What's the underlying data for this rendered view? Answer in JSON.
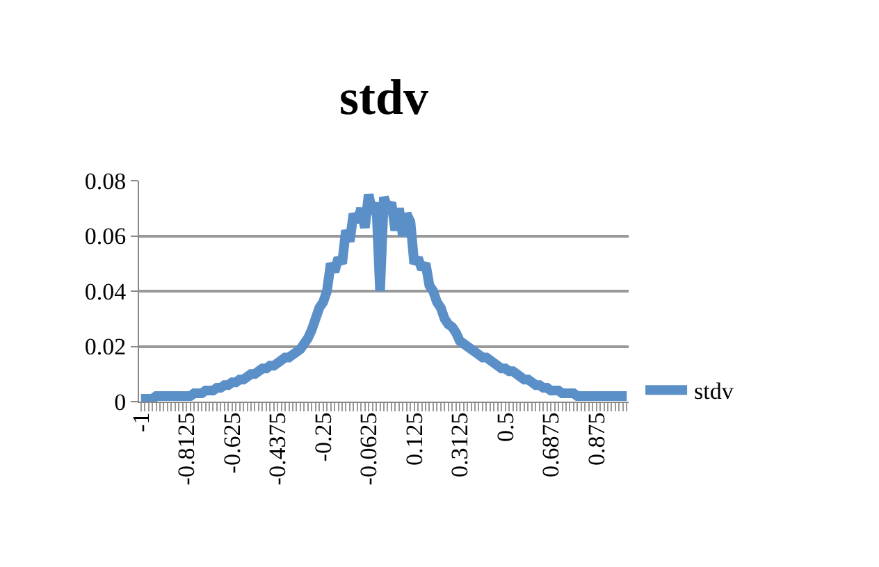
{
  "chart_data": {
    "type": "line",
    "title": "stdv",
    "categories": [
      "-1",
      null,
      null,
      null,
      null,
      null,
      null,
      null,
      null,
      null,
      null,
      null,
      "-0.8125",
      null,
      null,
      null,
      null,
      null,
      null,
      null,
      null,
      null,
      null,
      null,
      "-0.625",
      null,
      null,
      null,
      null,
      null,
      null,
      null,
      null,
      null,
      null,
      null,
      "-0.4375",
      null,
      null,
      null,
      null,
      null,
      null,
      null,
      null,
      null,
      null,
      null,
      "-0.25",
      null,
      null,
      null,
      null,
      null,
      null,
      null,
      null,
      null,
      null,
      null,
      "-0.0625",
      null,
      null,
      null,
      null,
      null,
      null,
      null,
      null,
      null,
      null,
      null,
      "0.125",
      null,
      null,
      null,
      null,
      null,
      null,
      null,
      null,
      null,
      null,
      null,
      "0.3125",
      null,
      null,
      null,
      null,
      null,
      null,
      null,
      null,
      null,
      null,
      null,
      "0.5",
      null,
      null,
      null,
      null,
      null,
      null,
      null,
      null,
      null,
      null,
      null,
      "0.6875",
      null,
      null,
      null,
      null,
      null,
      null,
      null,
      null,
      null,
      null,
      null,
      "0.875",
      null,
      null,
      null,
      null,
      null,
      null,
      null,
      null
    ],
    "series": [
      {
        "name": "stdv",
        "color": "#5b8fc7",
        "values": [
          0.001,
          0.001,
          0.001,
          0.001,
          0.002,
          0.002,
          0.002,
          0.002,
          0.002,
          0.002,
          0.002,
          0.002,
          0.002,
          0.002,
          0.003,
          0.003,
          0.003,
          0.004,
          0.004,
          0.004,
          0.005,
          0.005,
          0.006,
          0.006,
          0.007,
          0.007,
          0.008,
          0.008,
          0.009,
          0.01,
          0.01,
          0.011,
          0.012,
          0.012,
          0.013,
          0.013,
          0.014,
          0.015,
          0.016,
          0.016,
          0.017,
          0.018,
          0.019,
          0.021,
          0.023,
          0.026,
          0.03,
          0.034,
          0.036,
          0.04,
          0.05,
          0.047,
          0.052,
          0.05,
          0.062,
          0.058,
          0.068,
          0.065,
          0.07,
          0.063,
          0.075,
          0.068,
          0.072,
          0.04,
          0.074,
          0.07,
          0.072,
          0.062,
          0.07,
          0.06,
          0.068,
          0.065,
          0.05,
          0.052,
          0.048,
          0.05,
          0.042,
          0.04,
          0.036,
          0.034,
          0.03,
          0.028,
          0.027,
          0.025,
          0.022,
          0.021,
          0.02,
          0.019,
          0.018,
          0.017,
          0.016,
          0.016,
          0.015,
          0.014,
          0.013,
          0.012,
          0.012,
          0.011,
          0.011,
          0.01,
          0.009,
          0.008,
          0.008,
          0.007,
          0.006,
          0.006,
          0.005,
          0.005,
          0.004,
          0.004,
          0.004,
          0.003,
          0.003,
          0.003,
          0.003,
          0.002,
          0.002,
          0.002,
          0.002,
          0.002,
          0.002,
          0.002,
          0.002,
          0.002,
          0.002,
          0.002,
          0.002,
          0.002,
          0.002
        ]
      }
    ],
    "ylim": [
      0,
      0.08
    ],
    "yticks": [
      0,
      0.02,
      0.04,
      0.06,
      0.08
    ],
    "grid": "y",
    "legend": "right",
    "marker": "none",
    "line_style": "solid"
  }
}
